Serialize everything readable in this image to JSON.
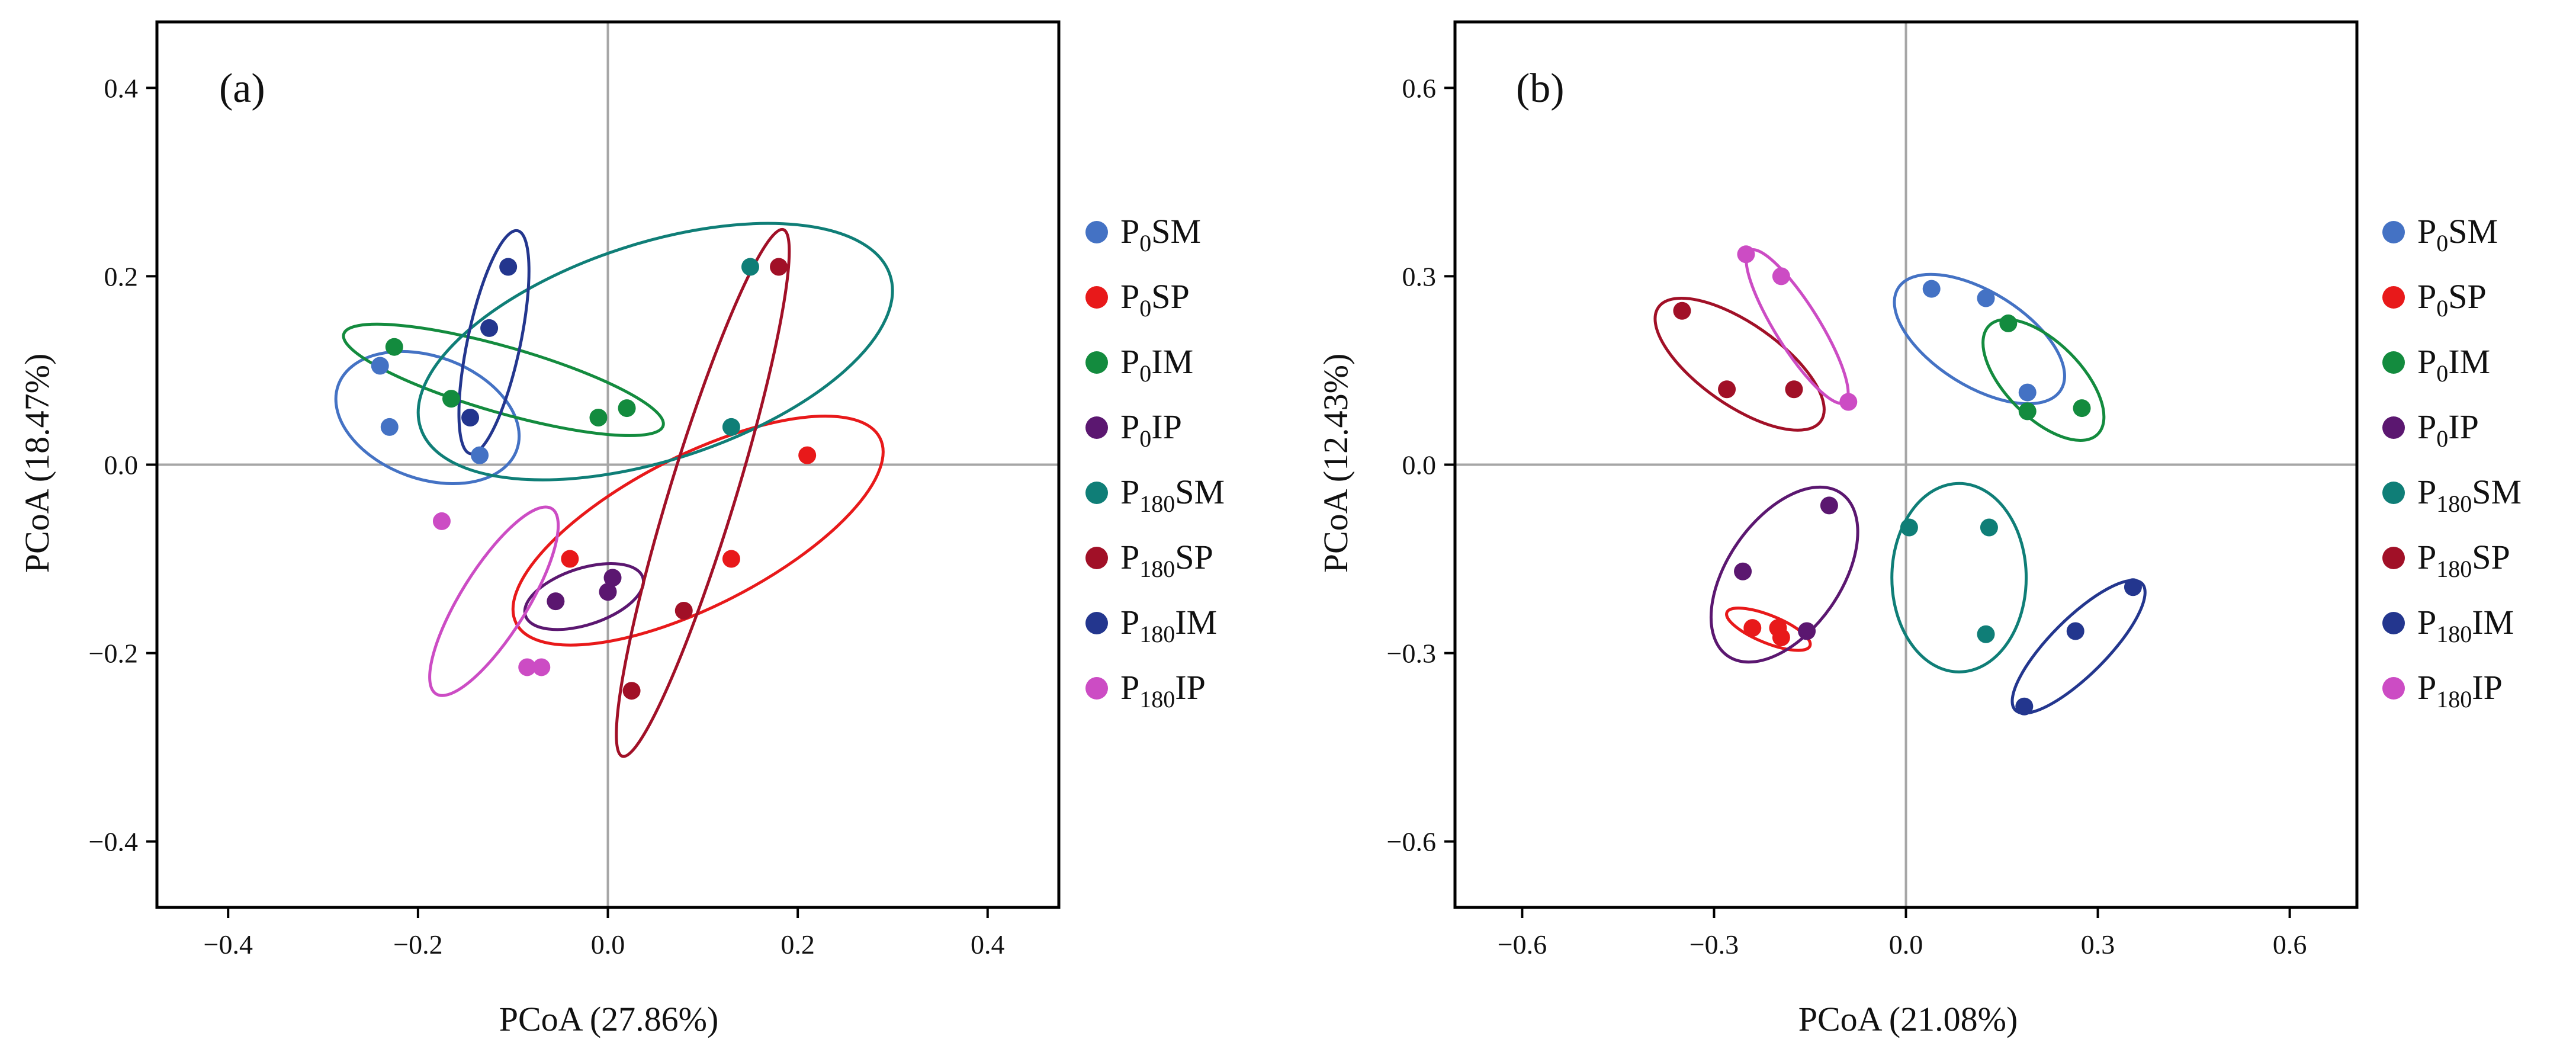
{
  "series_styles": [
    {
      "key": "P0SM",
      "base": "P",
      "sub": "0",
      "rest": "SM",
      "color": "#4472C4"
    },
    {
      "key": "P0SP",
      "base": "P",
      "sub": "0",
      "rest": "SP",
      "color": "#E8191A"
    },
    {
      "key": "P0IM",
      "base": "P",
      "sub": "0",
      "rest": "IM",
      "color": "#138B3E"
    },
    {
      "key": "P0IP",
      "base": "P",
      "sub": "0",
      "rest": "IP",
      "color": "#5B1770"
    },
    {
      "key": "P180SM",
      "base": "P",
      "sub": "180",
      "rest": "SM",
      "color": "#0F7E77"
    },
    {
      "key": "P180SP",
      "base": "P",
      "sub": "180",
      "rest": "SP",
      "color": "#A11027"
    },
    {
      "key": "P180IM",
      "base": "P",
      "sub": "180",
      "rest": "IM",
      "color": "#23368E"
    },
    {
      "key": "P180IP",
      "base": "P",
      "sub": "180",
      "rest": "IP",
      "color": "#CC4CC4"
    }
  ],
  "chart_data": [
    {
      "type": "scatter",
      "panel_label": "(a)",
      "xlabel": "PCoA (27.86%)",
      "ylabel": "PCoA (18.47%)",
      "xlim": [
        -0.475,
        0.475
      ],
      "ylim": [
        -0.47,
        0.47
      ],
      "xticks": [
        -0.4,
        -0.2,
        0.0,
        0.2,
        0.4
      ],
      "yticks": [
        -0.4,
        -0.2,
        0.0,
        0.2,
        0.4
      ],
      "xtick_labels": [
        "−0.4",
        "−0.2",
        "0.0",
        "0.2",
        "0.4"
      ],
      "ytick_labels": [
        "−0.4",
        "−0.2",
        "0.0",
        "0.2",
        "0.4"
      ],
      "grid": false,
      "zero_lines": true,
      "legend_position": "right",
      "series": [
        {
          "key": "P0SM",
          "points": [
            [
              -0.24,
              0.105
            ],
            [
              -0.23,
              0.04
            ],
            [
              -0.135,
              0.01
            ]
          ],
          "ellipse": {
            "cx": -0.19,
            "cy": 0.05,
            "rx": 0.1,
            "ry": 0.065,
            "angle_deg": -20
          }
        },
        {
          "key": "P0SP",
          "points": [
            [
              -0.04,
              -0.1
            ],
            [
              0.13,
              -0.1
            ],
            [
              0.21,
              0.01
            ]
          ],
          "ellipse": {
            "cx": 0.095,
            "cy": -0.07,
            "rx": 0.215,
            "ry": 0.08,
            "angle_deg": 27
          }
        },
        {
          "key": "P0IM",
          "points": [
            [
              -0.225,
              0.125
            ],
            [
              -0.165,
              0.07
            ],
            [
              -0.01,
              0.05
            ],
            [
              0.02,
              0.06
            ]
          ],
          "ellipse": {
            "cx": -0.11,
            "cy": 0.09,
            "rx": 0.175,
            "ry": 0.035,
            "angle_deg": -16
          }
        },
        {
          "key": "P0IP",
          "points": [
            [
              -0.055,
              -0.145
            ],
            [
              0.0,
              -0.135
            ],
            [
              0.005,
              -0.12
            ]
          ],
          "ellipse": {
            "cx": -0.025,
            "cy": -0.14,
            "rx": 0.065,
            "ry": 0.03,
            "angle_deg": 18
          }
        },
        {
          "key": "P180SM",
          "points": [
            [
              0.15,
              0.21
            ],
            [
              0.13,
              0.04
            ]
          ],
          "ellipse": {
            "cx": 0.05,
            "cy": 0.12,
            "rx": 0.26,
            "ry": 0.115,
            "angle_deg": 18
          }
        },
        {
          "key": "P180SP",
          "points": [
            [
              0.18,
              0.21
            ],
            [
              0.08,
              -0.155
            ],
            [
              0.025,
              -0.24
            ]
          ],
          "ellipse": {
            "cx": 0.1,
            "cy": -0.03,
            "rx": 0.29,
            "ry": 0.035,
            "angle_deg": 73
          }
        },
        {
          "key": "P180IM",
          "points": [
            [
              -0.105,
              0.21
            ],
            [
              -0.125,
              0.145
            ],
            [
              -0.145,
              0.05
            ]
          ],
          "ellipse": {
            "cx": -0.12,
            "cy": 0.13,
            "rx": 0.12,
            "ry": 0.028,
            "angle_deg": 78
          }
        },
        {
          "key": "P180IP",
          "points": [
            [
              -0.175,
              -0.06
            ],
            [
              -0.085,
              -0.215
            ],
            [
              -0.07,
              -0.215
            ]
          ],
          "ellipse": {
            "cx": -0.12,
            "cy": -0.145,
            "rx": 0.115,
            "ry": 0.035,
            "angle_deg": 58
          }
        }
      ]
    },
    {
      "type": "scatter",
      "panel_label": "(b)",
      "xlabel": "PCoA (21.08%)",
      "ylabel": "PCoA (12.43%)",
      "xlim": [
        -0.705,
        0.705
      ],
      "ylim": [
        -0.705,
        0.705
      ],
      "xticks": [
        -0.6,
        -0.3,
        0.0,
        0.3,
        0.6
      ],
      "yticks": [
        -0.6,
        -0.3,
        0.0,
        0.3,
        0.6
      ],
      "xtick_labels": [
        "−0.6",
        "−0.3",
        "0.0",
        "0.3",
        "0.6"
      ],
      "ytick_labels": [
        "−0.6",
        "−0.3",
        "0.0",
        "0.3",
        "0.6"
      ],
      "grid": false,
      "zero_lines": true,
      "legend_position": "right",
      "series": [
        {
          "key": "P0SM",
          "points": [
            [
              0.04,
              0.28
            ],
            [
              0.125,
              0.265
            ],
            [
              0.19,
              0.115
            ]
          ],
          "ellipse": {
            "cx": 0.115,
            "cy": 0.2,
            "rx": 0.15,
            "ry": 0.075,
            "angle_deg": -32
          }
        },
        {
          "key": "P0SP",
          "points": [
            [
              -0.24,
              -0.26
            ],
            [
              -0.2,
              -0.26
            ],
            [
              -0.195,
              -0.275
            ]
          ],
          "ellipse": {
            "cx": -0.215,
            "cy": -0.262,
            "rx": 0.07,
            "ry": 0.022,
            "angle_deg": -22
          }
        },
        {
          "key": "P0IM",
          "points": [
            [
              0.16,
              0.225
            ],
            [
              0.19,
              0.085
            ],
            [
              0.275,
              0.09
            ]
          ],
          "ellipse": {
            "cx": 0.215,
            "cy": 0.135,
            "rx": 0.12,
            "ry": 0.06,
            "angle_deg": -45
          }
        },
        {
          "key": "P0IP",
          "points": [
            [
              -0.255,
              -0.17
            ],
            [
              -0.155,
              -0.265
            ],
            [
              -0.12,
              -0.065
            ]
          ],
          "ellipse": {
            "cx": -0.19,
            "cy": -0.175,
            "rx": 0.155,
            "ry": 0.09,
            "angle_deg": 55
          }
        },
        {
          "key": "P180SM",
          "points": [
            [
              0.005,
              -0.1
            ],
            [
              0.13,
              -0.1
            ],
            [
              0.125,
              -0.27
            ]
          ],
          "ellipse": {
            "cx": 0.083,
            "cy": -0.18,
            "rx": 0.105,
            "ry": 0.15,
            "angle_deg": 0
          }
        },
        {
          "key": "P180SP",
          "points": [
            [
              -0.35,
              0.245
            ],
            [
              -0.28,
              0.12
            ],
            [
              -0.175,
              0.12
            ]
          ],
          "ellipse": {
            "cx": -0.26,
            "cy": 0.16,
            "rx": 0.155,
            "ry": 0.065,
            "angle_deg": -35
          }
        },
        {
          "key": "P180IM",
          "points": [
            [
              0.355,
              -0.195
            ],
            [
              0.265,
              -0.265
            ],
            [
              0.185,
              -0.385
            ]
          ],
          "ellipse": {
            "cx": 0.27,
            "cy": -0.29,
            "rx": 0.14,
            "ry": 0.045,
            "angle_deg": 45
          }
        },
        {
          "key": "P180IP",
          "points": [
            [
              -0.25,
              0.335
            ],
            [
              -0.195,
              0.3
            ],
            [
              -0.09,
              0.1
            ]
          ],
          "ellipse": {
            "cx": -0.17,
            "cy": 0.22,
            "rx": 0.14,
            "ry": 0.035,
            "angle_deg": -58
          }
        }
      ]
    }
  ]
}
